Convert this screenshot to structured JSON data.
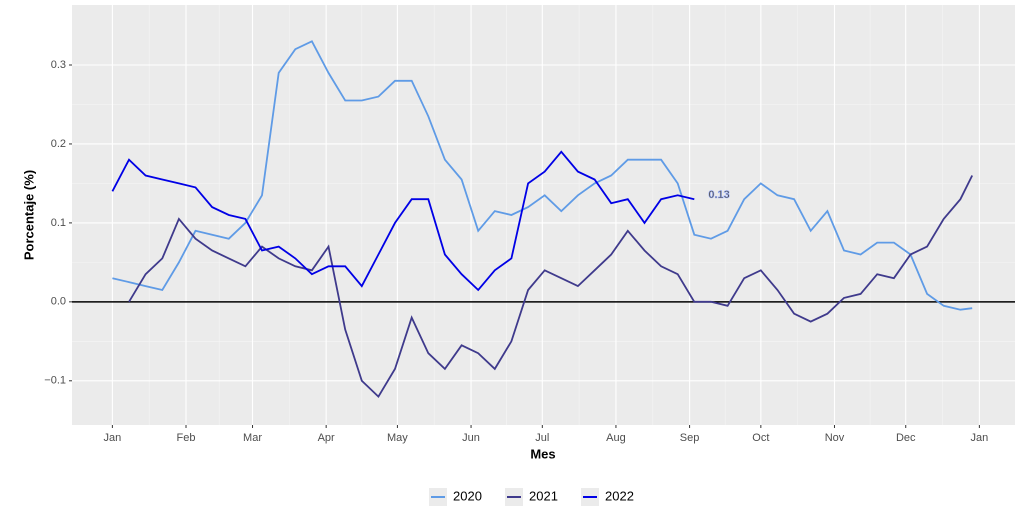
{
  "chart_data": {
    "type": "line",
    "x_label": "Mes",
    "y_label": "Porcentaje (%)",
    "x": [
      0,
      7,
      14,
      21,
      28,
      35,
      42,
      49,
      56,
      63,
      70,
      77,
      84,
      91,
      98,
      105,
      112,
      119,
      126,
      133,
      140,
      147,
      154,
      161,
      168,
      175,
      182,
      189,
      196,
      203,
      210,
      217,
      224,
      231,
      238,
      245,
      252,
      259,
      266,
      273,
      280,
      287,
      294,
      301,
      308,
      315,
      322,
      329,
      336,
      343,
      350,
      357,
      362
    ],
    "series": [
      {
        "name": "2020",
        "color": "#5f9be6",
        "values": [
          0.03,
          0.025,
          0.02,
          0.015,
          0.05,
          0.09,
          0.085,
          0.08,
          0.1,
          0.135,
          0.29,
          0.32,
          0.33,
          0.29,
          0.255,
          0.255,
          0.26,
          0.28,
          0.28,
          0.235,
          0.18,
          0.155,
          0.09,
          0.115,
          0.11,
          0.12,
          0.135,
          0.115,
          0.135,
          0.15,
          0.16,
          0.18,
          0.18,
          0.18,
          0.15,
          0.085,
          0.08,
          0.09,
          0.13,
          0.15,
          0.135,
          0.13,
          0.09,
          0.115,
          0.065,
          0.06,
          0.075,
          0.075,
          0.06,
          0.01,
          -0.005,
          -0.01,
          -0.008
        ]
      },
      {
        "name": "2021",
        "color": "#3f3a8c",
        "values": [
          null,
          0.0,
          0.035,
          0.055,
          0.105,
          0.08,
          0.065,
          0.055,
          0.045,
          0.07,
          0.055,
          0.045,
          0.04,
          0.07,
          -0.035,
          -0.1,
          -0.12,
          -0.085,
          -0.02,
          -0.065,
          -0.085,
          -0.055,
          -0.065,
          -0.085,
          -0.05,
          0.015,
          0.04,
          0.03,
          0.02,
          0.04,
          0.06,
          0.09,
          0.065,
          0.045,
          0.035,
          0.0,
          0.0,
          -0.005,
          0.03,
          0.04,
          0.015,
          -0.015,
          -0.025,
          -0.015,
          0.005,
          0.01,
          0.035,
          0.03,
          0.06,
          0.07,
          0.105,
          0.13,
          0.16
        ]
      },
      {
        "name": "2022",
        "color": "#0000e6",
        "values": [
          0.14,
          0.18,
          0.16,
          0.155,
          0.15,
          0.145,
          0.12,
          0.11,
          0.105,
          0.065,
          0.07,
          0.055,
          0.035,
          0.045,
          0.045,
          0.02,
          0.06,
          0.1,
          0.13,
          0.13,
          0.06,
          0.035,
          0.015,
          0.04,
          0.055,
          0.15,
          0.165,
          0.19,
          0.165,
          0.155,
          0.125,
          0.13,
          0.1,
          0.13,
          0.135,
          0.13,
          null,
          null,
          null,
          null,
          null,
          null,
          null,
          null,
          null,
          null,
          null,
          null,
          null,
          null,
          null,
          null,
          null
        ]
      }
    ],
    "last_label": {
      "series": 2,
      "text": "0.13"
    },
    "hline": 0,
    "xlim": [
      -17,
      380
    ],
    "xticks": [
      {
        "value": 0,
        "label": "Jan"
      },
      {
        "value": 31,
        "label": "Feb"
      },
      {
        "value": 59,
        "label": "Mar"
      },
      {
        "value": 90,
        "label": "Apr"
      },
      {
        "value": 120,
        "label": "May"
      },
      {
        "value": 151,
        "label": "Jun"
      },
      {
        "value": 181,
        "label": "Jul"
      },
      {
        "value": 212,
        "label": "Aug"
      },
      {
        "value": 243,
        "label": "Sep"
      },
      {
        "value": 273,
        "label": "Oct"
      },
      {
        "value": 304,
        "label": "Nov"
      },
      {
        "value": 334,
        "label": "Dec"
      },
      {
        "value": 365,
        "label": "Jan"
      }
    ],
    "ylim": [
      -0.156,
      0.376
    ],
    "yticks": [
      {
        "value": -0.1,
        "label": "−0.1"
      },
      {
        "value": 0,
        "label": "0.0"
      },
      0.1,
      0.2,
      0.3
    ],
    "grid": true,
    "legend": "bottom"
  }
}
